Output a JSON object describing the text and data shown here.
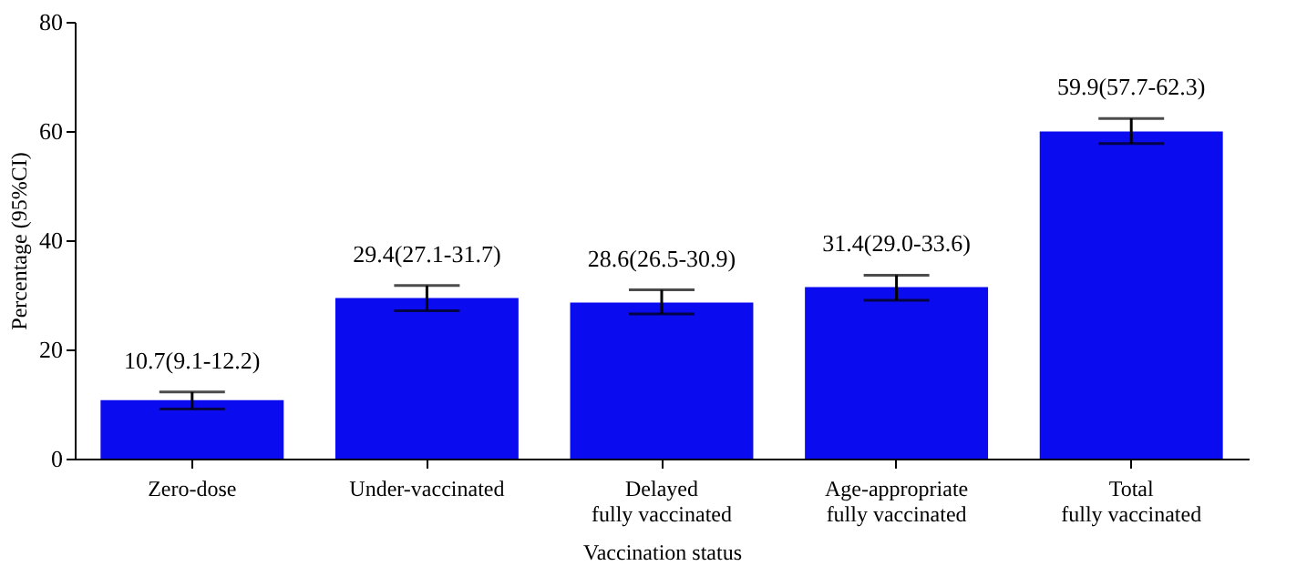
{
  "chart_data": {
    "type": "bar",
    "xlabel": "Vaccination status",
    "ylabel": "Percentage (95%CI)",
    "categories": [
      "Zero-dose",
      "Under-vaccinated",
      "Delayed\nfully vaccinated",
      "Age-appropriate\nfully vaccinated",
      "Total\nfully vaccinated"
    ],
    "values": [
      10.7,
      29.4,
      28.6,
      31.4,
      59.9
    ],
    "errors": [
      [
        9.1,
        12.2
      ],
      [
        27.1,
        31.7
      ],
      [
        26.5,
        30.9
      ],
      [
        29.0,
        33.6
      ],
      [
        57.7,
        62.3
      ]
    ],
    "value_labels": [
      "10.7(9.1-12.2)",
      "29.4(27.1-31.7)",
      "28.6(26.5-30.9)",
      "31.4(29.0-33.6)",
      "59.9(57.7-62.3)"
    ],
    "color": "#0b0bf0",
    "ylim": [
      0,
      80
    ],
    "yticks": [
      0,
      20,
      40,
      60,
      80
    ],
    "grid": false
  }
}
